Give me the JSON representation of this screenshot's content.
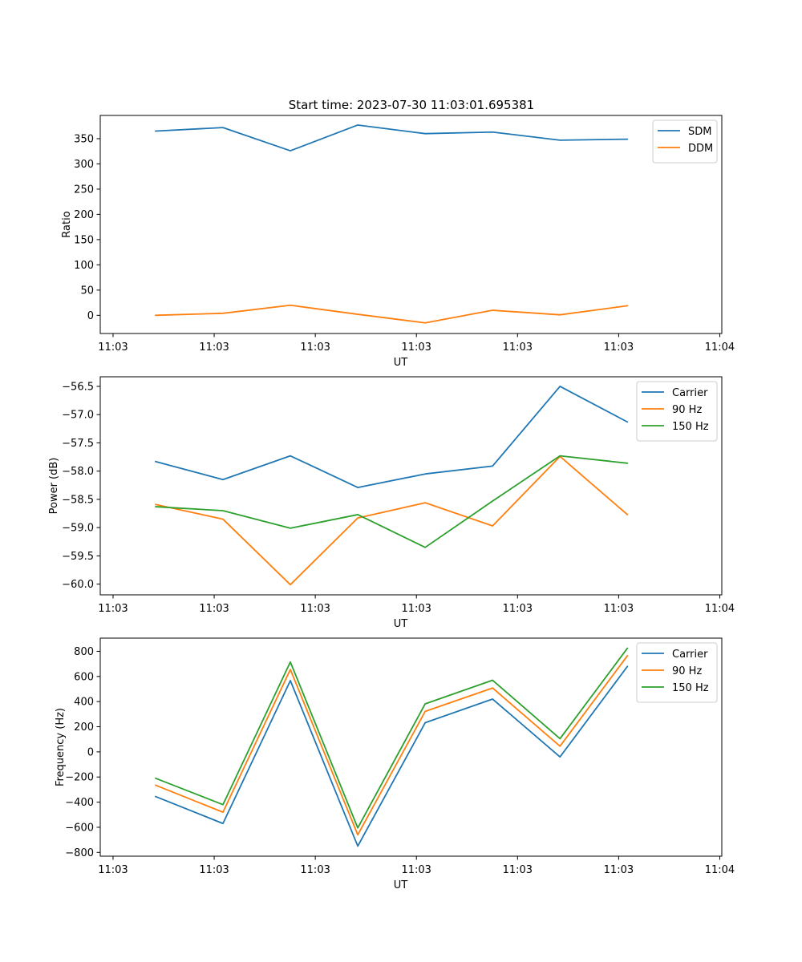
{
  "figure": {
    "title": "Start time: 2023-07-30 11:03:01.695381"
  },
  "chart_data": [
    {
      "type": "line",
      "xlabel": "UT",
      "ylabel": "Ratio",
      "x": [
        1,
        2,
        3,
        4,
        5,
        6,
        7,
        8
      ],
      "xlim": [
        0.18,
        9.4
      ],
      "xticks": [
        0.37,
        1.87,
        3.37,
        4.87,
        6.37,
        7.87,
        9.37
      ],
      "xticklabels": [
        "11:03",
        "11:03",
        "11:03",
        "11:03",
        "11:03",
        "11:03",
        "11:04"
      ],
      "ylim": [
        -36,
        396
      ],
      "yticks": [
        0,
        50,
        100,
        150,
        200,
        250,
        300,
        350
      ],
      "yticklabels": [
        "0",
        "50",
        "100",
        "150",
        "200",
        "250",
        "300",
        "350"
      ],
      "legend_position": "upper-right",
      "series": [
        {
          "name": "SDM",
          "color": "#1f77b4",
          "values": [
            365,
            372,
            326,
            377,
            360,
            363,
            347,
            349
          ]
        },
        {
          "name": "DDM",
          "color": "#ff7f0e",
          "values": [
            0,
            4,
            20,
            2,
            -15,
            10,
            1,
            19
          ]
        }
      ]
    },
    {
      "type": "line",
      "xlabel": "UT",
      "ylabel": "Power (dB)",
      "x": [
        1,
        2,
        3,
        4,
        5,
        6,
        7,
        8
      ],
      "xlim": [
        0.18,
        9.4
      ],
      "xticks": [
        0.37,
        1.87,
        3.37,
        4.87,
        6.37,
        7.87,
        9.37
      ],
      "xticklabels": [
        "11:03",
        "11:03",
        "11:03",
        "11:03",
        "11:03",
        "11:03",
        "11:04"
      ],
      "ylim": [
        -60.19,
        -56.33
      ],
      "yticks": [
        -60.0,
        -59.5,
        -59.0,
        -58.5,
        -58.0,
        -57.5,
        -57.0,
        -56.5
      ],
      "yticklabels": [
        "−60.0",
        "−59.5",
        "−59.0",
        "−58.5",
        "−58.0",
        "−57.5",
        "−57.0",
        "−56.5"
      ],
      "legend_position": "upper-right",
      "series": [
        {
          "name": "Carrier",
          "color": "#1f77b4",
          "values": [
            -57.83,
            -58.15,
            -57.73,
            -58.29,
            -58.05,
            -57.91,
            -56.5,
            -57.13
          ]
        },
        {
          "name": "90 Hz",
          "color": "#ff7f0e",
          "values": [
            -58.59,
            -58.85,
            -60.01,
            -58.83,
            -58.56,
            -58.97,
            -57.74,
            -58.77
          ]
        },
        {
          "name": "150 Hz",
          "color": "#2ca02c",
          "values": [
            -58.63,
            -58.7,
            -59.01,
            -58.77,
            -59.35,
            -58.53,
            -57.73,
            -57.86
          ]
        }
      ]
    },
    {
      "type": "line",
      "xlabel": "UT",
      "ylabel": "Frequency (Hz)",
      "x": [
        1,
        2,
        3,
        4,
        5,
        6,
        7,
        8
      ],
      "xlim": [
        0.18,
        9.4
      ],
      "xticks": [
        0.37,
        1.87,
        3.37,
        4.87,
        6.37,
        7.87,
        9.37
      ],
      "xticklabels": [
        "11:03",
        "11:03",
        "11:03",
        "11:03",
        "11:03",
        "11:03",
        "11:04"
      ],
      "ylim": [
        -830,
        905
      ],
      "yticks": [
        -800,
        -600,
        -400,
        -200,
        0,
        200,
        400,
        600,
        800
      ],
      "yticklabels": [
        "−800",
        "−600",
        "−400",
        "−200",
        "0",
        "200",
        "400",
        "600",
        "800"
      ],
      "legend_position": "upper-right",
      "series": [
        {
          "name": "Carrier",
          "color": "#1f77b4",
          "values": [
            -355,
            -570,
            567,
            -750,
            232,
            420,
            -40,
            680
          ]
        },
        {
          "name": "90 Hz",
          "color": "#ff7f0e",
          "values": [
            -265,
            -480,
            655,
            -660,
            322,
            508,
            45,
            765
          ]
        },
        {
          "name": "150 Hz",
          "color": "#2ca02c",
          "values": [
            -210,
            -420,
            715,
            -605,
            382,
            570,
            105,
            825
          ]
        }
      ]
    }
  ]
}
